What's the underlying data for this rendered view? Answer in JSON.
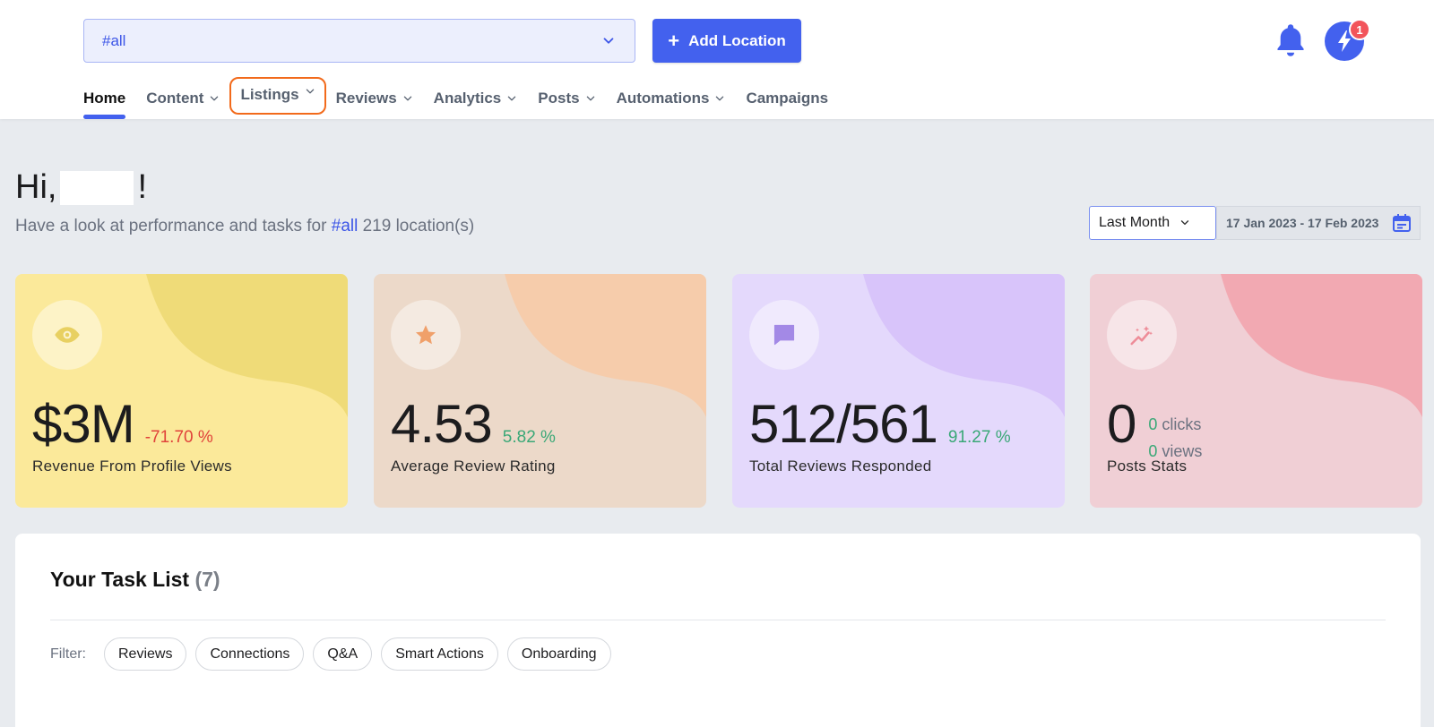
{
  "header": {
    "location_select": {
      "value": "#all"
    },
    "add_location_label": "Add Location",
    "notification_badge": "1"
  },
  "nav": {
    "items": [
      {
        "label": "Home",
        "has_dropdown": false,
        "active": true
      },
      {
        "label": "Content",
        "has_dropdown": true
      },
      {
        "label": "Listings",
        "has_dropdown": true,
        "highlighted": true
      },
      {
        "label": "Reviews",
        "has_dropdown": true
      },
      {
        "label": "Analytics",
        "has_dropdown": true
      },
      {
        "label": "Posts",
        "has_dropdown": true
      },
      {
        "label": "Automations",
        "has_dropdown": true
      },
      {
        "label": "Campaigns",
        "has_dropdown": false
      }
    ]
  },
  "greeting": {
    "hi": "Hi,",
    "exclaim": "!",
    "subtitle_prefix": "Have a look at performance and tasks for",
    "subtitle_tag": "#all",
    "subtitle_suffix": "219 location(s)"
  },
  "date_filter": {
    "range": "Last Month",
    "dates": "17 Jan 2023 - 17 Feb 2023"
  },
  "cards": [
    {
      "icon": "eye-icon",
      "value": "$3M",
      "delta": "-71.70 %",
      "label": "Revenue From Profile Views",
      "bg": "#fbe99a",
      "blob": "#efdb78",
      "icon_color": "#e8d061"
    },
    {
      "icon": "star-icon",
      "value": "4.53",
      "delta": "5.82 %",
      "label": "Average Review Rating",
      "bg": "#ecd9c9",
      "blob": "#f6ccab",
      "icon_color": "#f0a06a"
    },
    {
      "icon": "chat-icon",
      "value": "512/561",
      "delta": "91.27 %",
      "label": "Total Reviews Responded",
      "bg": "#e4d9fc",
      "blob": "#d8c4fa",
      "icon_color": "#a389e6"
    },
    {
      "icon": "sparkle-chart-icon",
      "value": "0",
      "clicks_count": "0",
      "clicks_label": "clicks",
      "views_count": "0",
      "views_label": "views",
      "label": "Posts Stats",
      "bg": "#f0cfd5",
      "blob": "#f2a9b2",
      "icon_color": "#ee8c98"
    }
  ],
  "tasks": {
    "title": "Your Task List",
    "count": "(7)",
    "filter_label": "Filter:",
    "filters": [
      "Reviews",
      "Connections",
      "Q&A",
      "Smart Actions",
      "Onboarding"
    ]
  }
}
